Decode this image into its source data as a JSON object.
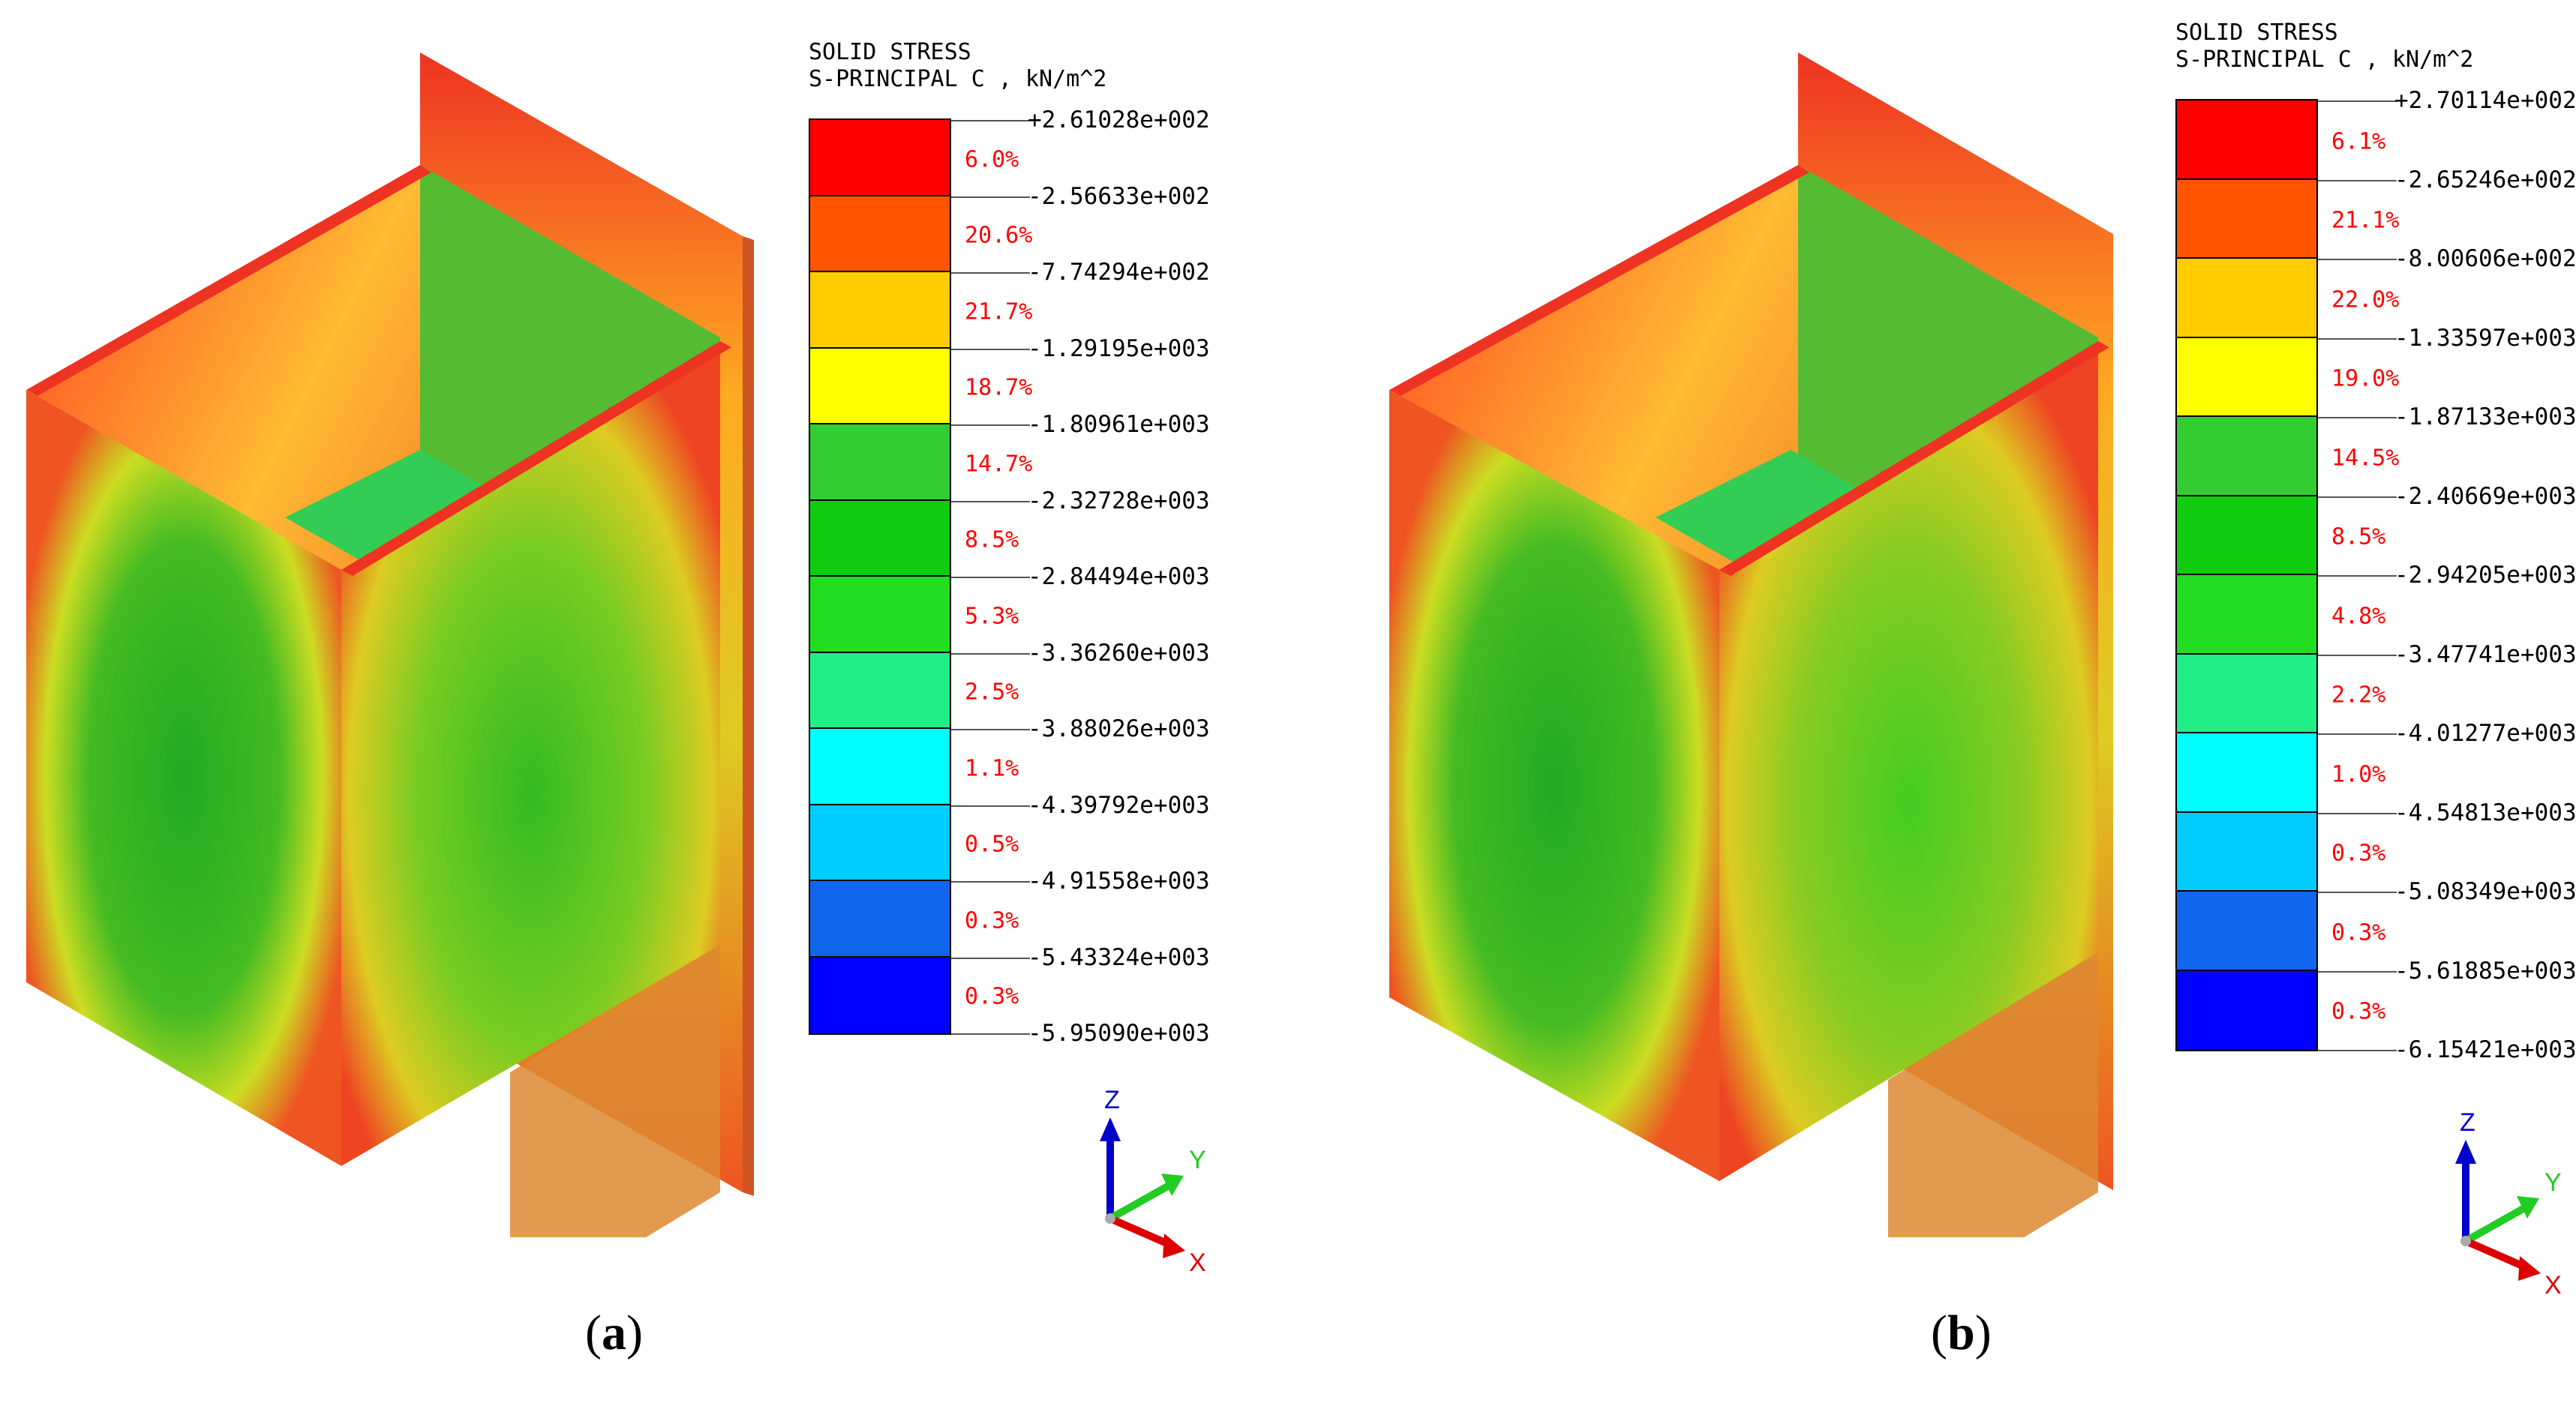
{
  "panels": [
    {
      "id": "a",
      "legend": {
        "title_line1": "SOLID STRESS",
        "title_line2": "S-PRINCIPAL C , kN/m^2",
        "ticks": [
          "+2.61028e+002",
          "-2.56633e+002",
          "-7.74294e+002",
          "-1.29195e+003",
          "-1.80961e+003",
          "-2.32728e+003",
          "-2.84494e+003",
          "-3.36260e+003",
          "-3.88026e+003",
          "-4.39792e+003",
          "-4.91558e+003",
          "-5.43324e+003",
          "-5.95090e+003"
        ],
        "percents": [
          "6.0%",
          "20.6%",
          "21.7%",
          "18.7%",
          "14.7%",
          "8.5%",
          "5.3%",
          "2.5%",
          "1.1%",
          "0.5%",
          "0.3%",
          "0.3%"
        ]
      },
      "axes": {
        "z": "Z",
        "y": "Y",
        "x": "X"
      },
      "caption_open": "(",
      "caption_letter": "a",
      "caption_close": ")"
    },
    {
      "id": "b",
      "legend": {
        "title_line1": "SOLID STRESS",
        "title_line2": "S-PRINCIPAL C , kN/m^2",
        "ticks": [
          "+2.70114e+002",
          "-2.65246e+002",
          "-8.00606e+002",
          "-1.33597e+003",
          "-1.87133e+003",
          "-2.40669e+003",
          "-2.94205e+003",
          "-3.47741e+003",
          "-4.01277e+003",
          "-4.54813e+003",
          "-5.08349e+003",
          "-5.61885e+003",
          "-6.15421e+003"
        ],
        "percents": [
          "6.1%",
          "21.1%",
          "22.0%",
          "19.0%",
          "14.5%",
          "8.5%",
          "4.8%",
          "2.2%",
          "1.0%",
          "0.3%",
          "0.3%",
          "0.3%"
        ]
      },
      "axes": {
        "z": "Z",
        "y": "Y",
        "x": "X"
      },
      "caption_open": "(",
      "caption_letter": "b",
      "caption_close": ")"
    }
  ],
  "band_colors": [
    "#ff0000",
    "#ff5500",
    "#ffcc00",
    "#ffff00",
    "#33cc33",
    "#11cc11",
    "#22dd22",
    "#22ee88",
    "#00ffff",
    "#00ccff",
    "#1166ee",
    "#0000ff"
  ],
  "axis_colors": {
    "z": "#0000cc",
    "y": "#22cc22",
    "x": "#dd0000"
  }
}
